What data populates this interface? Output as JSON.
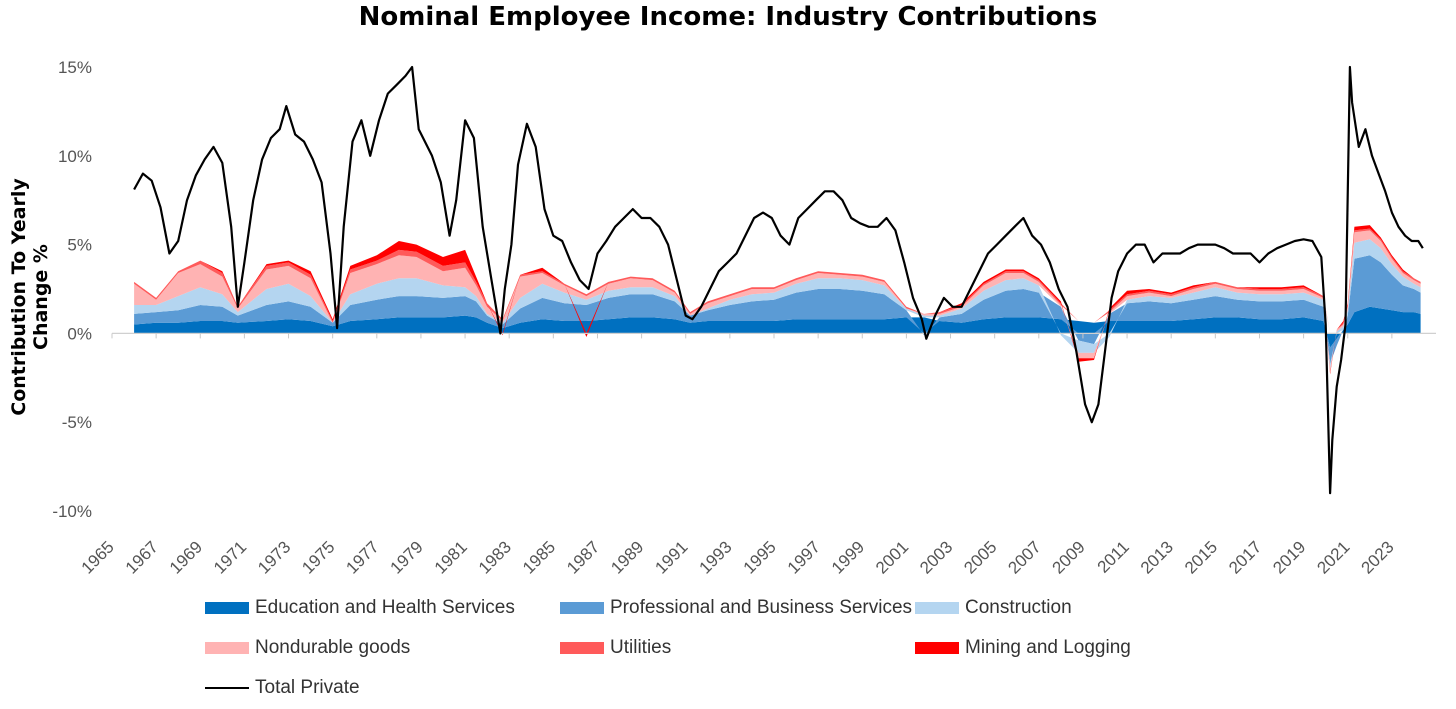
{
  "chart_data": {
    "type": "area",
    "title": "Nominal Employee Income: Industry Contributions",
    "ylabel": "Contribution To Yearly Change %",
    "xlabel": "",
    "xlim": [
      1965,
      2025
    ],
    "ylim": [
      -10,
      15
    ],
    "y_ticks": [
      15,
      10,
      5,
      0,
      -5,
      -10
    ],
    "y_tick_labels": [
      "15%",
      "10%",
      "5%",
      "0%",
      "-5%",
      "-10%"
    ],
    "x_ticks": [
      "1965",
      "1967",
      "1969",
      "1971",
      "1973",
      "1975",
      "1977",
      "1979",
      "1981",
      "1983",
      "1985",
      "1987",
      "1989",
      "1991",
      "1993",
      "1995",
      "1997",
      "1999",
      "2001",
      "2003",
      "2005",
      "2007",
      "2009",
      "2011",
      "2013",
      "2015",
      "2017",
      "2019",
      "2021",
      "2023"
    ],
    "grid": false,
    "legend_position": "bottom",
    "stack_x": [
      1966.0,
      1967.0,
      1968.0,
      1969.0,
      1970.0,
      1970.7,
      1972.0,
      1973.0,
      1974.0,
      1975.0,
      1975.8,
      1977.0,
      1978.0,
      1978.8,
      1980.0,
      1981.0,
      1981.5,
      1982.0,
      1982.7,
      1983.5,
      1984.5,
      1985.5,
      1986.5,
      1987.5,
      1988.5,
      1989.5,
      1990.5,
      1991.2,
      1992.0,
      1993.0,
      1994.0,
      1995.0,
      1996.0,
      1997.0,
      1998.0,
      1999.0,
      2000.0,
      2001.0,
      2001.8,
      2002.5,
      2003.5,
      2004.5,
      2005.5,
      2006.3,
      2007.0,
      2008.0,
      2008.8,
      2009.5,
      2010.2,
      2011.0,
      2012.0,
      2013.0,
      2014.0,
      2015.0,
      2016.0,
      2017.0,
      2018.0,
      2019.0,
      2019.9,
      2020.2,
      2020.5,
      2020.8,
      2021.0,
      2021.3,
      2022.0,
      2022.5,
      2023.0,
      2023.5,
      2024.0,
      2024.3
    ],
    "series": [
      {
        "name": "Education and Health Services",
        "color": "#0070c0",
        "values": [
          0.5,
          0.6,
          0.6,
          0.7,
          0.7,
          0.6,
          0.7,
          0.8,
          0.7,
          0.4,
          0.7,
          0.8,
          0.9,
          0.9,
          0.9,
          1.0,
          0.9,
          0.6,
          0.3,
          0.6,
          0.8,
          0.7,
          0.7,
          0.8,
          0.9,
          0.9,
          0.8,
          0.6,
          0.7,
          0.7,
          0.7,
          0.7,
          0.8,
          0.8,
          0.8,
          0.8,
          0.8,
          0.9,
          0.9,
          0.7,
          0.6,
          0.8,
          0.9,
          0.9,
          0.9,
          0.8,
          0.7,
          0.6,
          0.7,
          0.7,
          0.7,
          0.7,
          0.8,
          0.9,
          0.9,
          0.8,
          0.8,
          0.9,
          0.7,
          -0.8,
          -0.3,
          0.2,
          0.5,
          1.2,
          1.5,
          1.4,
          1.3,
          1.2,
          1.2,
          1.1
        ]
      },
      {
        "name": "Professional and Business Services",
        "color": "#5b9bd5",
        "values": [
          0.6,
          0.6,
          0.7,
          0.9,
          0.8,
          0.4,
          0.9,
          1.0,
          0.8,
          0.2,
          0.9,
          1.1,
          1.2,
          1.2,
          1.1,
          1.1,
          0.9,
          0.4,
          0.2,
          0.8,
          1.2,
          1.0,
          0.9,
          1.2,
          1.3,
          1.3,
          1.0,
          0.4,
          0.6,
          0.9,
          1.1,
          1.2,
          1.5,
          1.7,
          1.7,
          1.6,
          1.4,
          0.4,
          -0.1,
          0.2,
          0.5,
          1.1,
          1.5,
          1.6,
          1.4,
          0.7,
          -0.4,
          -0.6,
          0.4,
          1.0,
          1.1,
          1.0,
          1.1,
          1.2,
          1.0,
          1.0,
          1.0,
          1.0,
          0.8,
          -0.9,
          -0.4,
          0.0,
          0.5,
          3.0,
          2.9,
          2.6,
          2.0,
          1.5,
          1.3,
          1.2
        ]
      },
      {
        "name": "Construction",
        "color": "#b4d5f0",
        "values": [
          0.5,
          0.4,
          0.8,
          1.0,
          0.7,
          0.2,
          0.9,
          1.0,
          0.6,
          0.0,
          0.6,
          0.9,
          1.0,
          1.0,
          0.7,
          0.5,
          0.3,
          0.1,
          0.1,
          0.6,
          0.8,
          0.6,
          0.3,
          0.4,
          0.4,
          0.4,
          0.3,
          0.0,
          0.1,
          0.3,
          0.4,
          0.4,
          0.5,
          0.6,
          0.6,
          0.6,
          0.5,
          0.1,
          0.1,
          0.1,
          0.3,
          0.5,
          0.6,
          0.6,
          0.4,
          -0.1,
          -0.7,
          -0.5,
          -0.2,
          0.2,
          0.3,
          0.3,
          0.4,
          0.5,
          0.4,
          0.4,
          0.4,
          0.4,
          0.4,
          -0.3,
          0.1,
          0.2,
          0.3,
          0.9,
          0.9,
          0.8,
          0.6,
          0.5,
          0.3,
          0.3
        ]
      },
      {
        "name": "Nondurable goods",
        "color": "#ffb3b3",
        "values": [
          1.2,
          0.3,
          1.3,
          1.3,
          1.0,
          0.2,
          1.1,
          1.0,
          1.0,
          0.0,
          1.2,
          1.1,
          1.3,
          1.2,
          0.8,
          1.1,
          0.6,
          0.4,
          0.1,
          1.2,
          0.6,
          0.4,
          0.2,
          0.4,
          0.5,
          0.4,
          0.2,
          0.1,
          0.3,
          0.2,
          0.3,
          0.2,
          0.2,
          0.3,
          0.2,
          0.2,
          0.2,
          0.0,
          0.1,
          0.1,
          0.1,
          0.3,
          0.4,
          0.3,
          0.2,
          0.1,
          -0.3,
          -0.3,
          0.1,
          0.2,
          0.2,
          0.1,
          0.2,
          0.2,
          0.2,
          0.2,
          0.2,
          0.2,
          0.1,
          -0.2,
          0.1,
          0.1,
          0.2,
          0.6,
          0.5,
          0.4,
          0.3,
          0.2,
          0.2,
          0.2
        ]
      },
      {
        "name": "Utilities",
        "color": "#ff5a5a",
        "values": [
          0.1,
          0.1,
          0.1,
          0.2,
          0.2,
          0.1,
          0.2,
          0.2,
          0.2,
          0.1,
          0.2,
          0.2,
          0.3,
          0.3,
          0.3,
          0.3,
          0.2,
          0.2,
          0.1,
          0.1,
          0.1,
          0.1,
          0.1,
          0.1,
          0.1,
          0.1,
          0.1,
          0.1,
          0.1,
          0.1,
          0.1,
          0.1,
          0.1,
          0.1,
          0.1,
          0.1,
          0.1,
          0.1,
          0.0,
          0.1,
          0.1,
          0.1,
          0.1,
          0.1,
          0.1,
          0.1,
          0.0,
          0.0,
          0.1,
          0.1,
          0.1,
          0.1,
          0.1,
          0.1,
          0.1,
          0.1,
          0.1,
          0.1,
          0.1,
          0.0,
          0.0,
          0.1,
          0.1,
          0.1,
          0.1,
          0.1,
          0.1,
          0.1,
          0.1,
          0.1
        ]
      },
      {
        "name": "Mining and Logging",
        "color": "#ff0000",
        "values": [
          0.0,
          0.0,
          0.0,
          0.0,
          0.1,
          0.0,
          0.1,
          0.1,
          0.2,
          0.1,
          0.2,
          0.3,
          0.5,
          0.4,
          0.5,
          0.7,
          0.3,
          0.0,
          -0.1,
          0.0,
          0.2,
          0.0,
          -0.2,
          0.0,
          0.0,
          0.0,
          0.0,
          0.0,
          0.0,
          0.0,
          0.0,
          0.0,
          0.0,
          0.0,
          0.0,
          0.0,
          0.0,
          0.0,
          0.0,
          0.0,
          0.1,
          0.1,
          0.1,
          0.1,
          0.1,
          0.1,
          -0.2,
          -0.1,
          0.1,
          0.2,
          0.1,
          0.1,
          0.1,
          0.0,
          0.0,
          0.1,
          0.1,
          0.1,
          0.0,
          -0.1,
          0.0,
          0.1,
          0.1,
          0.2,
          0.2,
          0.1,
          0.1,
          0.1,
          0.0,
          0.0
        ]
      }
    ],
    "total_private": {
      "name": "Total Private",
      "color": "#000000",
      "x": [
        1966.0,
        1966.4,
        1966.8,
        1967.2,
        1967.6,
        1968.0,
        1968.4,
        1968.8,
        1969.2,
        1969.6,
        1970.0,
        1970.4,
        1970.7,
        1971.0,
        1971.4,
        1971.8,
        1972.2,
        1972.6,
        1972.9,
        1973.3,
        1973.7,
        1974.1,
        1974.5,
        1974.9,
        1975.2,
        1975.5,
        1975.9,
        1976.3,
        1976.7,
        1977.1,
        1977.5,
        1977.9,
        1978.3,
        1978.6,
        1978.9,
        1979.1,
        1979.5,
        1979.9,
        1980.3,
        1980.6,
        1981.0,
        1981.4,
        1981.8,
        1982.2,
        1982.6,
        1982.8,
        1983.1,
        1983.4,
        1983.8,
        1984.2,
        1984.6,
        1985.0,
        1985.4,
        1985.8,
        1986.2,
        1986.6,
        1987.0,
        1987.4,
        1987.8,
        1988.2,
        1988.6,
        1989.0,
        1989.4,
        1989.8,
        1990.2,
        1990.6,
        1991.0,
        1991.3,
        1991.7,
        1992.1,
        1992.5,
        1992.9,
        1993.3,
        1993.7,
        1994.1,
        1994.5,
        1994.9,
        1995.3,
        1995.7,
        1996.1,
        1996.5,
        1996.9,
        1997.3,
        1997.7,
        1998.1,
        1998.5,
        1998.9,
        1999.3,
        1999.7,
        2000.1,
        2000.5,
        2000.9,
        2001.3,
        2001.7,
        2001.9,
        2002.3,
        2002.7,
        2003.1,
        2003.5,
        2003.9,
        2004.3,
        2004.7,
        2005.1,
        2005.5,
        2005.9,
        2006.3,
        2006.7,
        2007.1,
        2007.5,
        2007.9,
        2008.3,
        2008.7,
        2009.1,
        2009.4,
        2009.7,
        2010.0,
        2010.3,
        2010.6,
        2011.0,
        2011.4,
        2011.8,
        2012.2,
        2012.6,
        2013.0,
        2013.4,
        2013.8,
        2014.2,
        2014.6,
        2015.0,
        2015.4,
        2015.8,
        2016.2,
        2016.6,
        2017.0,
        2017.4,
        2017.8,
        2018.2,
        2018.6,
        2019.0,
        2019.4,
        2019.8,
        2020.0,
        2020.2,
        2020.3,
        2020.5,
        2020.7,
        2020.9,
        2021.1,
        2021.2,
        2021.5,
        2021.8,
        2022.1,
        2022.4,
        2022.7,
        2023.0,
        2023.3,
        2023.6,
        2023.9,
        2024.2,
        2024.4
      ],
      "values": [
        8.1,
        9.0,
        8.6,
        7.1,
        4.5,
        5.2,
        7.5,
        8.9,
        9.8,
        10.5,
        9.6,
        6.0,
        1.5,
        4.0,
        7.5,
        9.8,
        11.0,
        11.5,
        12.8,
        11.2,
        10.8,
        9.8,
        8.5,
        4.5,
        0.3,
        6.0,
        10.8,
        12.0,
        10.0,
        12.0,
        13.5,
        14.0,
        14.5,
        15.0,
        11.5,
        11.0,
        10.0,
        8.5,
        5.5,
        7.5,
        12.0,
        11.0,
        6.0,
        3.0,
        0.0,
        2.5,
        5.0,
        9.5,
        11.8,
        10.5,
        7.0,
        5.5,
        5.2,
        4.0,
        3.0,
        2.5,
        4.5,
        5.2,
        6.0,
        6.5,
        7.0,
        6.5,
        6.5,
        6.0,
        5.0,
        3.0,
        1.0,
        0.8,
        1.5,
        2.5,
        3.5,
        4.0,
        4.5,
        5.5,
        6.5,
        6.8,
        6.5,
        5.5,
        5.0,
        6.5,
        7.0,
        7.5,
        8.0,
        8.0,
        7.5,
        6.5,
        6.2,
        6.0,
        6.0,
        6.5,
        5.8,
        4.0,
        2.0,
        0.8,
        -0.3,
        1.0,
        2.0,
        1.5,
        1.5,
        2.5,
        3.5,
        4.5,
        5.0,
        5.5,
        6.0,
        6.5,
        5.5,
        5.0,
        4.0,
        2.5,
        1.5,
        -1.0,
        -4.0,
        -5.0,
        -4.0,
        -1.0,
        2.0,
        3.5,
        4.5,
        5.0,
        5.0,
        4.0,
        4.5,
        4.5,
        4.5,
        4.8,
        5.0,
        5.0,
        5.0,
        4.8,
        4.5,
        4.5,
        4.5,
        4.0,
        4.5,
        4.8,
        5.0,
        5.2,
        5.3,
        5.2,
        4.3,
        0.5,
        -9.0,
        -6.0,
        -3.0,
        -1.5,
        0.5,
        15.0,
        13.0,
        10.5,
        11.5,
        10.0,
        9.0,
        8.0,
        6.8,
        6.0,
        5.5,
        5.2,
        5.2,
        4.8
      ]
    }
  }
}
